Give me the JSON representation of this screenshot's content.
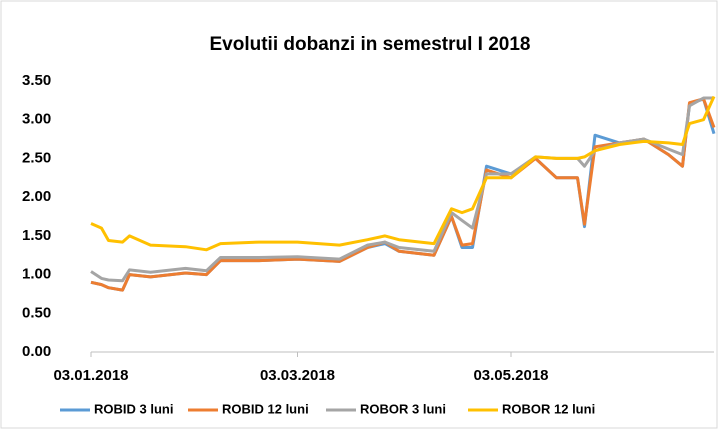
{
  "chart_data": {
    "type": "line",
    "title": "Evolutii dobanzi in semestrul I 2018",
    "x": [
      "03.01.2018",
      "06.01.2018",
      "08.01.2018",
      "12.01.2018",
      "14.01.2018",
      "20.01.2018",
      "30.01.2018",
      "05.02.2018",
      "09.02.2018",
      "20.02.2018",
      "03.03.2018",
      "15.03.2018",
      "23.03.2018",
      "28.03.2018",
      "01.04.2018",
      "11.04.2018",
      "16.04.2018",
      "19.04.2018",
      "22.04.2018",
      "26.04.2018",
      "03.05.2018",
      "10.05.2018",
      "16.05.2018",
      "22.05.2018",
      "24.05.2018",
      "27.05.2018",
      "03.06.2018",
      "10.06.2018",
      "17.06.2018",
      "21.06.2018",
      "23.06.2018",
      "27.06.2018",
      "30.06.2018"
    ],
    "series": [
      {
        "name": "ROBID 3 luni",
        "color": "#5b9bd5",
        "values": [
          0.9,
          0.87,
          0.83,
          0.8,
          1.0,
          0.97,
          1.02,
          1.0,
          1.18,
          1.18,
          1.2,
          1.17,
          1.35,
          1.4,
          1.3,
          1.25,
          1.75,
          1.35,
          1.35,
          2.4,
          2.3,
          2.5,
          2.25,
          2.25,
          1.62,
          2.8,
          2.7,
          2.75,
          2.55,
          2.4,
          3.2,
          3.27,
          2.82
        ]
      },
      {
        "name": "ROBID 12 luni",
        "color": "#ed7d31",
        "values": [
          0.9,
          0.87,
          0.83,
          0.8,
          1.0,
          0.97,
          1.02,
          1.0,
          1.18,
          1.18,
          1.2,
          1.17,
          1.35,
          1.42,
          1.3,
          1.25,
          1.75,
          1.38,
          1.4,
          2.35,
          2.25,
          2.5,
          2.25,
          2.25,
          1.65,
          2.65,
          2.7,
          2.75,
          2.55,
          2.4,
          3.22,
          3.27,
          2.9
        ]
      },
      {
        "name": "ROBOR 3 luni",
        "color": "#a5a5a5",
        "values": [
          1.04,
          0.95,
          0.93,
          0.92,
          1.06,
          1.03,
          1.08,
          1.05,
          1.22,
          1.22,
          1.23,
          1.2,
          1.38,
          1.42,
          1.35,
          1.3,
          1.8,
          1.7,
          1.6,
          2.3,
          2.3,
          2.52,
          2.5,
          2.5,
          2.4,
          2.6,
          2.7,
          2.75,
          2.62,
          2.55,
          3.18,
          3.28,
          3.28
        ]
      },
      {
        "name": "ROBOR 12 luni",
        "color": "#ffc000",
        "values": [
          1.66,
          1.6,
          1.44,
          1.42,
          1.5,
          1.38,
          1.36,
          1.32,
          1.4,
          1.42,
          1.42,
          1.38,
          1.45,
          1.5,
          1.45,
          1.4,
          1.85,
          1.8,
          1.85,
          2.25,
          2.25,
          2.52,
          2.5,
          2.5,
          2.52,
          2.6,
          2.68,
          2.72,
          2.7,
          2.68,
          2.95,
          3.0,
          3.3
        ]
      }
    ],
    "xlim": [
      "03.01.2018",
      "30.06.2018"
    ],
    "xticks": [
      "03.01.2018",
      "03.03.2018",
      "03.05.2018"
    ],
    "ylim": [
      0,
      3.5
    ],
    "yticks": [
      {
        "value": 0,
        "label": "0.00"
      },
      {
        "value": 0.5,
        "label": "0.50"
      },
      {
        "value": 1,
        "label": "1.00"
      },
      {
        "value": 1.5,
        "label": "1.50"
      },
      {
        "value": 2,
        "label": "2.00"
      },
      {
        "value": 2.5,
        "label": "2.50"
      },
      {
        "value": 3,
        "label": "3.00"
      },
      {
        "value": 3.5,
        "label": "3.50"
      }
    ],
    "legend": "bottom"
  }
}
